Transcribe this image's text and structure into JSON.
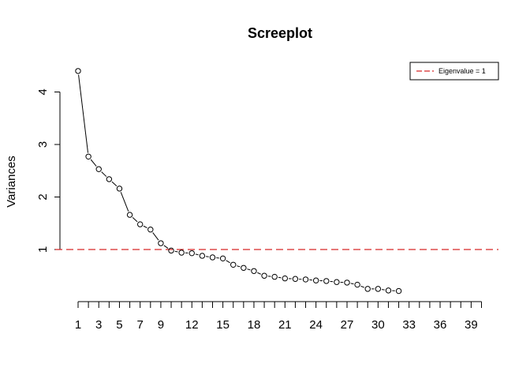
{
  "chart_data": {
    "type": "line",
    "title": "Screeplot",
    "xlabel": "",
    "ylabel": "Variances",
    "x": [
      1,
      2,
      3,
      4,
      5,
      6,
      7,
      8,
      9,
      10,
      11,
      12,
      13,
      14,
      15,
      16,
      17,
      18,
      19,
      20,
      21,
      22,
      23,
      24,
      25,
      26,
      27,
      28,
      29,
      30,
      31,
      32
    ],
    "series": [
      {
        "name": "",
        "values": [
          4.4,
          2.77,
          2.53,
          2.34,
          2.16,
          1.66,
          1.48,
          1.38,
          1.12,
          0.98,
          0.94,
          0.93,
          0.88,
          0.85,
          0.83,
          0.71,
          0.65,
          0.59,
          0.5,
          0.48,
          0.45,
          0.44,
          0.43,
          0.41,
          0.4,
          0.38,
          0.37,
          0.33,
          0.25,
          0.25,
          0.22,
          0.21
        ],
        "style": "points-with-line-segments",
        "point_shape": "open-circle",
        "color": "#000000"
      }
    ],
    "reference_line": {
      "y": 1,
      "label": "Eigenvalue = 1",
      "color": "#d62728",
      "style": "dashed"
    },
    "x_axis": {
      "ticks_min": 1,
      "ticks_max": 40,
      "tick_labels": [
        "1",
        "3",
        "5",
        "7",
        "9",
        "12",
        "15",
        "18",
        "21",
        "24",
        "27",
        "30",
        "33",
        "36",
        "39"
      ]
    },
    "y_axis": {
      "ticks": [
        1,
        2,
        3,
        4
      ],
      "tick_labels": [
        "1",
        "2",
        "3",
        "4"
      ]
    },
    "legend": {
      "placement": "top-right",
      "entries": [
        "Eigenvalue = 1"
      ]
    },
    "grid": false
  }
}
